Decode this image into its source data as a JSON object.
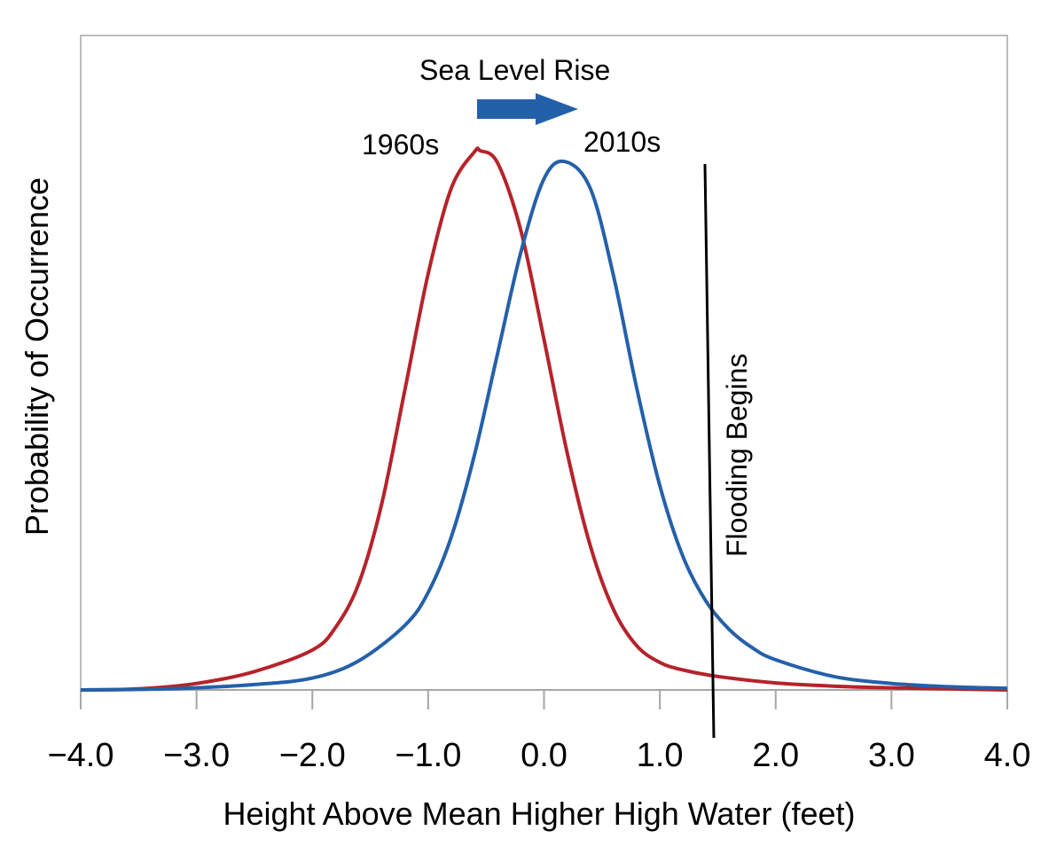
{
  "chart_data": {
    "type": "line",
    "title": "",
    "xlabel": "Height Above Mean Higher High Water (feet)",
    "ylabel": "Probability of Occurrence",
    "xlim": [
      -4.0,
      4.0
    ],
    "ylim": [
      0,
      1.0
    ],
    "x_ticks": [
      -4.0,
      -3.0,
      -2.0,
      -1.0,
      0.0,
      1.0,
      2.0,
      3.0,
      4.0
    ],
    "x_tick_labels": [
      "−4.0",
      "−3.0",
      "−2.0",
      "−1.0",
      "0.0",
      "1.0",
      "2.0",
      "3.0",
      "4.0"
    ],
    "y_ticks_shown": false,
    "grid": false,
    "series": [
      {
        "name": "1960s",
        "color": "#b5232b",
        "x": [
          -4.0,
          -3.5,
          -3.0,
          -2.5,
          -2.0,
          -1.8,
          -1.6,
          -1.4,
          -1.2,
          -1.0,
          -0.8,
          -0.6,
          -0.55,
          -0.4,
          -0.2,
          0.0,
          0.2,
          0.4,
          0.6,
          0.8,
          1.0,
          1.2,
          1.5,
          2.0,
          2.5,
          3.0,
          3.5,
          4.0
        ],
        "y": [
          0.0,
          0.002,
          0.012,
          0.034,
          0.074,
          0.116,
          0.197,
          0.346,
          0.558,
          0.772,
          0.931,
          0.998,
          1.0,
          0.977,
          0.852,
          0.65,
          0.44,
          0.267,
          0.149,
          0.082,
          0.051,
          0.037,
          0.025,
          0.013,
          0.007,
          0.004,
          0.002,
          0.0
        ]
      },
      {
        "name": "2010s",
        "color": "#2460aa",
        "x": [
          -4.0,
          -3.5,
          -3.0,
          -2.5,
          -2.0,
          -1.6,
          -1.2,
          -1.0,
          -0.8,
          -0.6,
          -0.4,
          -0.2,
          0.0,
          0.18,
          0.4,
          0.6,
          0.8,
          1.0,
          1.2,
          1.4,
          1.6,
          1.8,
          2.0,
          2.5,
          3.0,
          3.5,
          4.0
        ],
        "y": [
          0.0,
          0.001,
          0.004,
          0.01,
          0.022,
          0.054,
          0.12,
          0.181,
          0.284,
          0.436,
          0.625,
          0.812,
          0.948,
          0.98,
          0.93,
          0.768,
          0.56,
          0.379,
          0.247,
          0.164,
          0.112,
          0.078,
          0.056,
          0.025,
          0.012,
          0.006,
          0.003
        ]
      }
    ],
    "annotations": {
      "series_label_1960s": "1960s",
      "series_label_2010s": "2010s",
      "shift_label": "Sea Level Rise",
      "shift_arrow_color": "#2460aa",
      "threshold_label": "Flooding Begins",
      "threshold_x": 1.5
    }
  }
}
